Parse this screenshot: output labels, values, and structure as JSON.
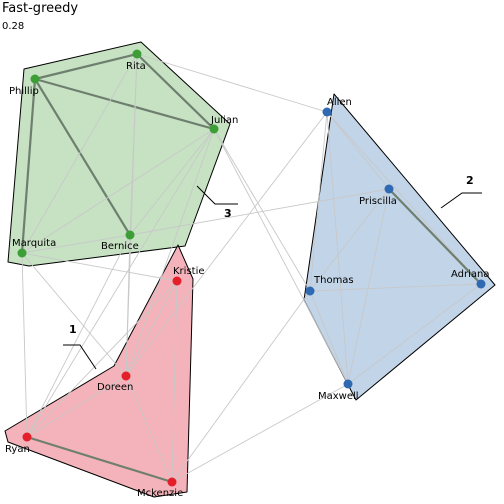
{
  "title": "Fast-greedy",
  "modularity": "0.28",
  "colors": {
    "green_fill": "#c6e2c3",
    "green_stroke": "#000000",
    "green_node": "#3c9e35",
    "blue_fill": "#c2d4e8",
    "blue_node": "#2e69b2",
    "red_fill": "#f4b3ba",
    "red_node": "#e3202a",
    "edge_light": "#c8c8c8",
    "edge_heavy": "#6f7f6f"
  },
  "clusters": [
    {
      "label": "3",
      "nodes": [
        "Rita",
        "Phillip",
        "Julian",
        "Marquita",
        "Bernice"
      ],
      "color": "green"
    },
    {
      "label": "2",
      "nodes": [
        "Allen",
        "Priscilla",
        "Thomas",
        "Adriana",
        "Maxwell"
      ],
      "color": "blue"
    },
    {
      "label": "1",
      "nodes": [
        "Kristie",
        "Doreen",
        "Ryan",
        "Mckenzie"
      ],
      "color": "red"
    }
  ],
  "nodes": [
    {
      "name": "Rita",
      "cluster": "green"
    },
    {
      "name": "Phillip",
      "cluster": "green"
    },
    {
      "name": "Julian",
      "cluster": "green"
    },
    {
      "name": "Marquita",
      "cluster": "green"
    },
    {
      "name": "Bernice",
      "cluster": "green"
    },
    {
      "name": "Allen",
      "cluster": "blue"
    },
    {
      "name": "Priscilla",
      "cluster": "blue"
    },
    {
      "name": "Thomas",
      "cluster": "blue"
    },
    {
      "name": "Adriana",
      "cluster": "blue"
    },
    {
      "name": "Maxwell",
      "cluster": "blue"
    },
    {
      "name": "Kristie",
      "cluster": "red"
    },
    {
      "name": "Doreen",
      "cluster": "red"
    },
    {
      "name": "Ryan",
      "cluster": "red"
    },
    {
      "name": "Mckenzie",
      "cluster": "red"
    }
  ],
  "edges": [
    {
      "source": "Phillip",
      "target": "Rita",
      "weight": "heavy"
    },
    {
      "source": "Phillip",
      "target": "Julian",
      "weight": "heavy"
    },
    {
      "source": "Phillip",
      "target": "Marquita",
      "weight": "heavy"
    },
    {
      "source": "Phillip",
      "target": "Bernice",
      "weight": "heavy"
    },
    {
      "source": "Rita",
      "target": "Julian",
      "weight": "heavy"
    },
    {
      "source": "Rita",
      "target": "Marquita",
      "weight": "light"
    },
    {
      "source": "Rita",
      "target": "Bernice",
      "weight": "light"
    },
    {
      "source": "Julian",
      "target": "Marquita",
      "weight": "light"
    },
    {
      "source": "Julian",
      "target": "Bernice",
      "weight": "light"
    },
    {
      "source": "Marquita",
      "target": "Bernice",
      "weight": "light"
    },
    {
      "source": "Allen",
      "target": "Priscilla",
      "weight": "light"
    },
    {
      "source": "Allen",
      "target": "Thomas",
      "weight": "light"
    },
    {
      "source": "Allen",
      "target": "Adriana",
      "weight": "light"
    },
    {
      "source": "Allen",
      "target": "Maxwell",
      "weight": "light"
    },
    {
      "source": "Priscilla",
      "target": "Adriana",
      "weight": "heavy"
    },
    {
      "source": "Priscilla",
      "target": "Thomas",
      "weight": "light"
    },
    {
      "source": "Priscilla",
      "target": "Maxwell",
      "weight": "light"
    },
    {
      "source": "Thomas",
      "target": "Adriana",
      "weight": "light"
    },
    {
      "source": "Thomas",
      "target": "Maxwell",
      "weight": "light"
    },
    {
      "source": "Adriana",
      "target": "Maxwell",
      "weight": "light"
    },
    {
      "source": "Ryan",
      "target": "Mckenzie",
      "weight": "heavy"
    },
    {
      "source": "Ryan",
      "target": "Doreen",
      "weight": "light"
    },
    {
      "source": "Ryan",
      "target": "Kristie",
      "weight": "light"
    },
    {
      "source": "Doreen",
      "target": "Kristie",
      "weight": "light"
    },
    {
      "source": "Doreen",
      "target": "Mckenzie",
      "weight": "light"
    },
    {
      "source": "Kristie",
      "target": "Mckenzie",
      "weight": "light"
    },
    {
      "source": "Rita",
      "target": "Allen",
      "weight": "light"
    },
    {
      "source": "Julian",
      "target": "Maxwell",
      "weight": "light"
    },
    {
      "source": "Julian",
      "target": "Thomas",
      "weight": "light"
    },
    {
      "source": "Julian",
      "target": "Doreen",
      "weight": "light"
    },
    {
      "source": "Julian",
      "target": "Ryan",
      "weight": "light"
    },
    {
      "source": "Bernice",
      "target": "Priscilla",
      "weight": "light"
    },
    {
      "source": "Bernice",
      "target": "Doreen",
      "weight": "light"
    },
    {
      "source": "Bernice",
      "target": "Ryan",
      "weight": "light"
    },
    {
      "source": "Marquita",
      "target": "Ryan",
      "weight": "light"
    },
    {
      "source": "Marquita",
      "target": "Kristie",
      "weight": "light"
    },
    {
      "source": "Marquita",
      "target": "Doreen",
      "weight": "light"
    },
    {
      "source": "Rita",
      "target": "Doreen",
      "weight": "light"
    },
    {
      "source": "Allen",
      "target": "Doreen",
      "weight": "light"
    },
    {
      "source": "Maxwell",
      "target": "Mckenzie",
      "weight": "light"
    },
    {
      "source": "Thomas",
      "target": "Mckenzie",
      "weight": "light"
    }
  ]
}
